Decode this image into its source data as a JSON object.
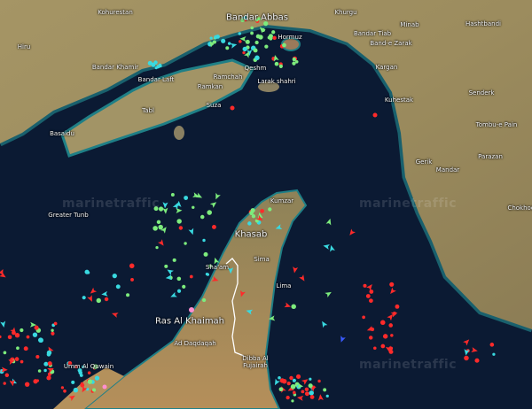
{
  "map": {
    "watermark": "marinetraffic",
    "colors": {
      "sea": "#0b1a33",
      "land": "#9a8a5c",
      "shallow": "#1f7f86",
      "cargo_vessel": "#7dec7d",
      "tanker_vessel": "#ff2a2a",
      "tug_special": "#39d9e0",
      "passenger": "#ff8fd0",
      "fishing": "#3a5bff",
      "border": "#ffffff"
    },
    "places": [
      {
        "id": "kohurestan",
        "name": "Kohurestan"
      },
      {
        "id": "bandar-abbas",
        "name": "Bandar Abbas"
      },
      {
        "id": "khurgu",
        "name": "Khurgu"
      },
      {
        "id": "minab",
        "name": "Minab"
      },
      {
        "id": "hashtbandi",
        "name": "Hashtbandi"
      },
      {
        "id": "hiru",
        "name": "Hiru"
      },
      {
        "id": "hormuz",
        "name": "Hormuz"
      },
      {
        "id": "bandar-tiab",
        "name": "Bandar Tiab"
      },
      {
        "id": "band-e-zarak",
        "name": "Band-e Zarak"
      },
      {
        "id": "bandar-khamir",
        "name": "Bandar Khamir"
      },
      {
        "id": "qeshm",
        "name": "Qeshm"
      },
      {
        "id": "kargan",
        "name": "Kargan"
      },
      {
        "id": "bandar-laft",
        "name": "Bandar Laft"
      },
      {
        "id": "ramchah",
        "name": "Ramchah"
      },
      {
        "id": "larak-shahri",
        "name": "Larak shahri"
      },
      {
        "id": "ramkan",
        "name": "Ramkan"
      },
      {
        "id": "senderk",
        "name": "Senderk"
      },
      {
        "id": "tabl",
        "name": "Tabl"
      },
      {
        "id": "suza",
        "name": "Suza"
      },
      {
        "id": "kuhestak",
        "name": "Kuhestak"
      },
      {
        "id": "basaidu",
        "name": "Basaidu"
      },
      {
        "id": "tombu-e-pain",
        "name": "Tombu-e Pain"
      },
      {
        "id": "jask-area",
        "name": "Gerik"
      },
      {
        "id": "mandar",
        "name": "Mandar"
      },
      {
        "id": "parazan",
        "name": "Parazan"
      },
      {
        "id": "greater-tunb",
        "name": "Greater Tunb"
      },
      {
        "id": "kumzar",
        "name": "Kumzar"
      },
      {
        "id": "chokhoon",
        "name": "Chokhoon"
      },
      {
        "id": "khasab",
        "name": "Khasab"
      },
      {
        "id": "sima",
        "name": "Sima"
      },
      {
        "id": "shaam",
        "name": "Sha'am"
      },
      {
        "id": "lima",
        "name": "Lima"
      },
      {
        "id": "ras-al-khaimah",
        "name": "Ras Al Khaimah"
      },
      {
        "id": "ad-daqdaqah",
        "name": "Ad Daqdaqah"
      },
      {
        "id": "dibba",
        "name": "Dibba Al Fujairah"
      },
      {
        "id": "umm-al-quwain",
        "name": "Umm Al Quwain"
      }
    ]
  }
}
